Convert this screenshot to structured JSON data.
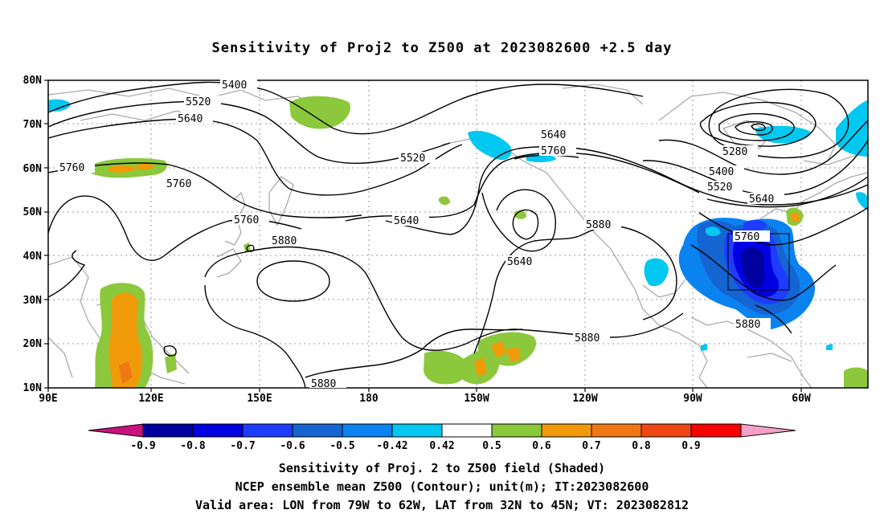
{
  "title": "Sensitivity of Proj2 to Z500 at 2023082600 +2.5 day",
  "lat_labels": [
    "80N",
    "70N",
    "60N",
    "50N",
    "40N",
    "30N",
    "20N",
    "10N"
  ],
  "lon_labels": [
    "90E",
    "120E",
    "150E",
    "180",
    "150W",
    "120W",
    "90W",
    "60W"
  ],
  "contour_labels": {
    "c5400a": "5400",
    "c5520a": "5520",
    "c5640a": "5640",
    "c5760a": "5760",
    "c5760b": "5760",
    "c5520b": "5520",
    "c5640b": "5640",
    "c5760c": "5760",
    "c5880a": "5880",
    "c5640c": "5640",
    "c5760d": "5760",
    "c5640d": "5640",
    "c5880b": "5880",
    "c5280": "5280",
    "c5400b": "5400",
    "c5520c": "5520",
    "c5640e": "5640",
    "c5760e": "5760",
    "c5880c": "5880",
    "c5880d": "5880",
    "c5880e": "5880"
  },
  "colorbar": {
    "labels": [
      "-0.9",
      "-0.8",
      "-0.7",
      "-0.6",
      "-0.5",
      "-0.42",
      "0.42",
      "0.5",
      "0.6",
      "0.7",
      "0.8",
      "0.9"
    ],
    "colors": [
      "#0000a0",
      "#0000e0",
      "#1e3cff",
      "#1464d2",
      "#0a82f0",
      "#00c8f0",
      "#ffffff",
      "#8cc83c",
      "#f09a0a",
      "#f07814",
      "#f04614",
      "#fa0000"
    ],
    "left_tip_color": "#c8127d",
    "right_tip_color": "#f5a0c8"
  },
  "footer": {
    "line1": "Sensitivity of Proj. 2 to Z500 field (Shaded)",
    "line2": "NCEP ensemble mean Z500 (Contour); unit(m); IT:2023082600",
    "line3": "Valid area: LON from 79W to 62W, LAT from 32N to 45N; VT: 2023082812"
  }
}
